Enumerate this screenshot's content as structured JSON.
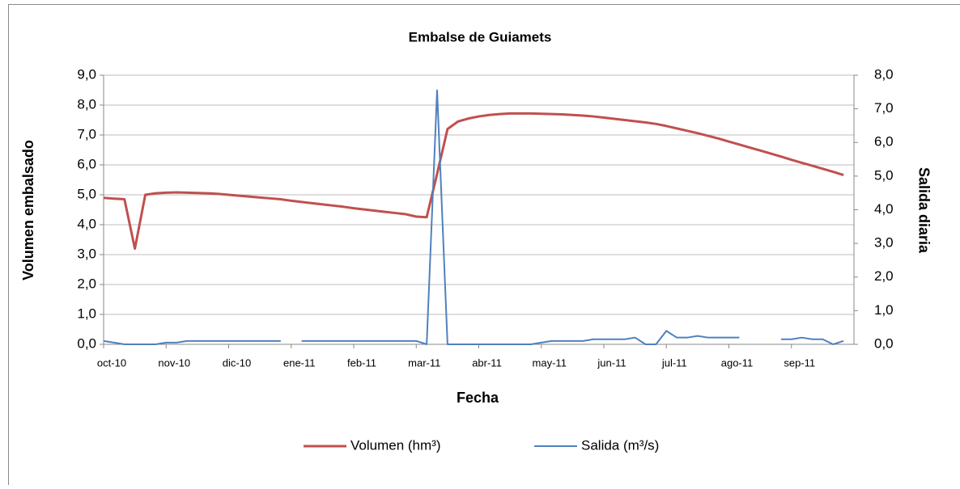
{
  "chart_data": {
    "type": "line",
    "title": "Embalse de Guiamets",
    "xlabel": "Fecha",
    "ylabel": "Volumen embalsado",
    "y2label": "Salida diaria",
    "categories": [
      "oct-10",
      null,
      null,
      null,
      null,
      null,
      "nov-10",
      null,
      null,
      null,
      null,
      null,
      "dic-10",
      null,
      null,
      null,
      null,
      null,
      "ene-11",
      null,
      null,
      null,
      null,
      null,
      "feb-11",
      null,
      null,
      null,
      null,
      null,
      "mar-11",
      null,
      null,
      null,
      null,
      null,
      "abr-11",
      null,
      null,
      null,
      null,
      null,
      "may-11",
      null,
      null,
      null,
      null,
      null,
      "jun-11",
      null,
      null,
      null,
      null,
      null,
      "jul-11",
      null,
      null,
      null,
      null,
      null,
      "ago-11",
      null,
      null,
      null,
      null,
      null,
      "sep-11",
      null,
      null,
      null,
      null,
      null
    ],
    "series": [
      {
        "name": "Volumen (hm³)",
        "color": "#c0504d",
        "axis": "y",
        "values": [
          4.9,
          4.87,
          4.85,
          3.2,
          5.0,
          5.05,
          5.07,
          5.08,
          5.07,
          5.06,
          5.05,
          5.03,
          5.0,
          4.97,
          4.94,
          4.91,
          4.88,
          4.85,
          4.8,
          4.76,
          4.72,
          4.68,
          4.64,
          4.6,
          4.55,
          4.51,
          4.47,
          4.43,
          4.39,
          4.35,
          4.27,
          4.25,
          5.7,
          7.2,
          7.45,
          7.55,
          7.62,
          7.67,
          7.7,
          7.72,
          7.72,
          7.72,
          7.71,
          7.7,
          7.69,
          7.67,
          7.65,
          7.62,
          7.58,
          7.54,
          7.5,
          7.46,
          7.42,
          7.37,
          7.3,
          7.22,
          7.14,
          7.06,
          6.97,
          6.88,
          6.78,
          6.68,
          6.58,
          6.48,
          6.38,
          6.28,
          6.17,
          6.07,
          5.97,
          5.87,
          5.77,
          5.66
        ]
      },
      {
        "name": "Salida (m³/s)",
        "color": "#4f81bd",
        "axis": "y2",
        "values": [
          0.1,
          0.05,
          0.0,
          0.0,
          0.0,
          0.0,
          0.05,
          0.05,
          0.1,
          0.1,
          0.1,
          0.1,
          0.1,
          0.1,
          0.1,
          0.1,
          0.1,
          0.1,
          null,
          0.1,
          0.1,
          0.1,
          0.1,
          0.1,
          0.1,
          0.1,
          0.1,
          0.1,
          0.1,
          0.1,
          0.1,
          0.0,
          7.55,
          0.0,
          0.0,
          0.0,
          0.0,
          0.0,
          0.0,
          0.0,
          0.0,
          0.0,
          0.05,
          0.1,
          0.1,
          0.1,
          0.1,
          0.15,
          0.15,
          0.15,
          0.15,
          0.2,
          0.0,
          0.0,
          0.4,
          0.2,
          0.2,
          0.25,
          0.2,
          0.2,
          0.2,
          0.2,
          null,
          null,
          null,
          0.15,
          0.15,
          0.2,
          0.15,
          0.15,
          0.0,
          0.1
        ]
      }
    ],
    "ylim": [
      0,
      9
    ],
    "yticks": [
      {
        "value": 0,
        "label": "0,0"
      },
      {
        "value": 1,
        "label": "1,0"
      },
      {
        "value": 2,
        "label": "2,0"
      },
      {
        "value": 3,
        "label": "3,0"
      },
      {
        "value": 4,
        "label": "4,0"
      },
      {
        "value": 5,
        "label": "5,0"
      },
      {
        "value": 6,
        "label": "6,0"
      },
      {
        "value": 7,
        "label": "7,0"
      },
      {
        "value": 8,
        "label": "8,0"
      },
      {
        "value": 9,
        "label": "9,0"
      }
    ],
    "y2lim": [
      0,
      8
    ],
    "y2ticks": [
      {
        "value": 0,
        "label": "0,0"
      },
      {
        "value": 1,
        "label": "1,0"
      },
      {
        "value": 2,
        "label": "2,0"
      },
      {
        "value": 3,
        "label": "3,0"
      },
      {
        "value": 4,
        "label": "4,0"
      },
      {
        "value": 5,
        "label": "5,0"
      },
      {
        "value": 6,
        "label": "6,0"
      },
      {
        "value": 7,
        "label": "7,0"
      },
      {
        "value": 8,
        "label": "8,0"
      }
    ],
    "grid": true,
    "legend": "bottom"
  }
}
